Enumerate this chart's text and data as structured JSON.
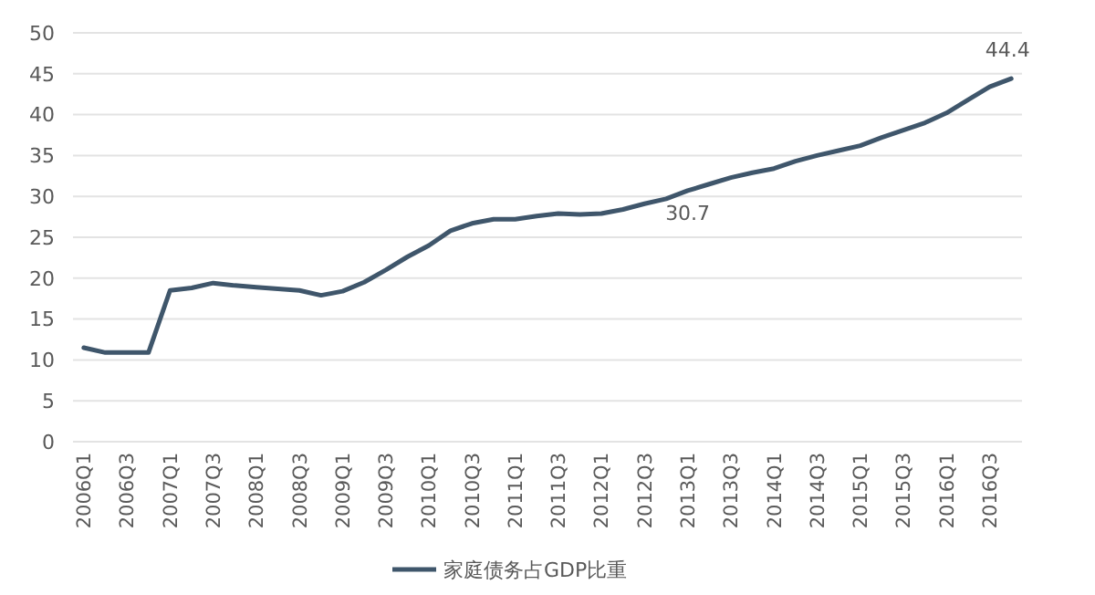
{
  "chart_data": {
    "type": "line",
    "categories": [
      "2006Q1",
      null,
      "2006Q3",
      null,
      "2007Q1",
      null,
      "2007Q3",
      null,
      "2008Q1",
      null,
      "2008Q3",
      null,
      "2009Q1",
      null,
      "2009Q3",
      null,
      "2010Q1",
      null,
      "2010Q3",
      null,
      "2011Q1",
      null,
      "2011Q3",
      null,
      "2012Q1",
      null,
      "2012Q3",
      null,
      "2013Q1",
      null,
      "2013Q3",
      null,
      "2014Q1",
      null,
      "2014Q3",
      null,
      "2015Q1",
      null,
      "2015Q3",
      null,
      "2016Q1",
      null,
      "2016Q3",
      null
    ],
    "series": [
      {
        "name": "家庭债务占GDP比重",
        "color": "#3f566b",
        "values": [
          11.5,
          10.9,
          10.9,
          10.9,
          18.5,
          18.8,
          19.4,
          19.1,
          18.9,
          18.7,
          18.5,
          17.9,
          18.4,
          19.5,
          21.0,
          22.6,
          24.0,
          25.8,
          26.7,
          27.2,
          27.2,
          27.6,
          27.9,
          27.8,
          27.9,
          28.4,
          29.1,
          29.7,
          30.7,
          31.5,
          32.3,
          32.9,
          33.4,
          34.3,
          35.0,
          35.6,
          36.2,
          37.2,
          38.1,
          39.0,
          40.2,
          41.8,
          43.4,
          44.4
        ],
        "value_labels": [
          null,
          null,
          null,
          null,
          null,
          null,
          null,
          null,
          null,
          null,
          null,
          null,
          null,
          null,
          null,
          null,
          null,
          null,
          null,
          null,
          null,
          null,
          null,
          null,
          null,
          null,
          null,
          null,
          "30.7",
          null,
          null,
          null,
          null,
          null,
          null,
          null,
          null,
          null,
          null,
          null,
          null,
          null,
          null,
          "44.4"
        ]
      }
    ],
    "ylim": [
      0,
      50
    ],
    "yticks": [
      0,
      5,
      10,
      15,
      20,
      25,
      30,
      35,
      40,
      45,
      50
    ],
    "grid": "y",
    "legend": "bottom",
    "marker": "none",
    "line_style": "solid"
  }
}
